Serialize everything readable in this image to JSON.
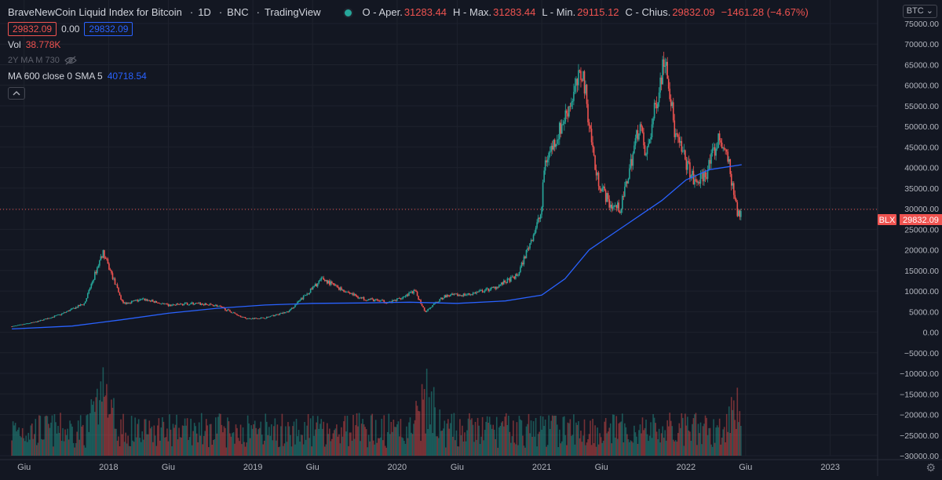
{
  "header": {
    "title": "BraveNewCoin Liquid Index for Bitcoin",
    "interval": "1D",
    "exchange": "BNC",
    "source": "TradingView",
    "ohlc": [
      {
        "key": "O - Aper.",
        "value": "31283.44"
      },
      {
        "key": "H - Max.",
        "value": "31283.44"
      },
      {
        "key": "L - Min.",
        "value": "29115.12"
      },
      {
        "key": "C - Chius.",
        "value": "29832.09"
      }
    ],
    "change": "−1461.28 (−4.67%)",
    "bid": "29832.09",
    "spread": "0.00",
    "ask": "29832.09"
  },
  "indicators": {
    "vol_label": "Vol",
    "vol_value": "38.778K",
    "hidden_label": "2Y MA M 730",
    "ma_label": "MA 600 close 0 SMA 5",
    "ma_value": "40718.54"
  },
  "currency_badge": "BTC",
  "price_tag": {
    "symbol": "BLX",
    "value": "29832.09"
  },
  "colors": {
    "background": "#131722",
    "up": "#26a69a",
    "down": "#ef5350",
    "ma": "#2962ff",
    "text": "#b2b5be"
  },
  "chart_data": {
    "type": "candlestick",
    "title": "BraveNewCoin Liquid Index for Bitcoin",
    "y_axis": {
      "ticks": [
        "75000.00",
        "70000.00",
        "65000.00",
        "60000.00",
        "55000.00",
        "50000.00",
        "45000.00",
        "40000.00",
        "35000.00",
        "30000.00",
        "25000.00",
        "20000.00",
        "15000.00",
        "10000.00",
        "5000.00",
        "0.00",
        "−5000.00",
        "−10000.00",
        "−15000.00",
        "−20000.00",
        "−25000.00",
        "−30000.00"
      ],
      "range": [
        -30000,
        75000
      ]
    },
    "x_axis": {
      "ticks": [
        "Giu",
        "2018",
        "Giu",
        "2019",
        "Giu",
        "2020",
        "Giu",
        "2021",
        "Giu",
        "2022",
        "Giu",
        "2023"
      ],
      "range": [
        "2017-05-01",
        "2023-06-01"
      ]
    },
    "series": [
      {
        "name": "BLX",
        "kind": "price_close_approx",
        "x": [
          "2017-05-01",
          "2017-07-01",
          "2017-09-01",
          "2017-11-01",
          "2017-12-17",
          "2018-02-06",
          "2018-04-01",
          "2018-06-01",
          "2018-08-01",
          "2018-10-01",
          "2018-12-15",
          "2019-02-01",
          "2019-04-01",
          "2019-06-26",
          "2019-08-01",
          "2019-10-01",
          "2019-12-15",
          "2020-02-15",
          "2020-03-12",
          "2020-05-01",
          "2020-07-01",
          "2020-09-01",
          "2020-11-01",
          "2020-12-31",
          "2021-01-08",
          "2021-02-15",
          "2021-04-14",
          "2021-05-19",
          "2021-06-22",
          "2021-07-20",
          "2021-09-06",
          "2021-09-21",
          "2021-11-10",
          "2021-12-04",
          "2022-01-24",
          "2022-02-20",
          "2022-03-28",
          "2022-04-20",
          "2022-05-12",
          "2022-05-22"
        ],
        "y": [
          1400,
          2500,
          4300,
          7000,
          19500,
          7000,
          8000,
          6500,
          7000,
          6500,
          3300,
          3500,
          5000,
          13000,
          11000,
          8300,
          7200,
          10000,
          5000,
          8800,
          9200,
          10700,
          13800,
          29000,
          41000,
          49000,
          63500,
          38000,
          31000,
          30000,
          51000,
          42000,
          68000,
          48000,
          36000,
          38500,
          47500,
          40500,
          28000,
          29832
        ]
      },
      {
        "name": "MA 600 close 0 SMA 5",
        "kind": "line",
        "x": [
          "2017-05-01",
          "2017-10-01",
          "2018-02-01",
          "2018-06-01",
          "2018-10-01",
          "2019-02-01",
          "2019-06-01",
          "2019-10-01",
          "2020-02-01",
          "2020-06-01",
          "2020-10-01",
          "2021-01-01",
          "2021-03-01",
          "2021-05-01",
          "2021-08-01",
          "2021-11-01",
          "2022-01-01",
          "2022-03-01",
          "2022-05-22"
        ],
        "y": [
          800,
          1500,
          3000,
          4600,
          5800,
          6600,
          7000,
          7100,
          7300,
          7000,
          7600,
          9000,
          13000,
          20000,
          26000,
          32000,
          37000,
          39500,
          40700
        ]
      }
    ],
    "volume": {
      "max_value": 38778,
      "peaks": [
        "2017-12-17",
        "2020-03-12",
        "2022-05-12"
      ]
    },
    "grid": true,
    "last_price": 29832.09
  }
}
